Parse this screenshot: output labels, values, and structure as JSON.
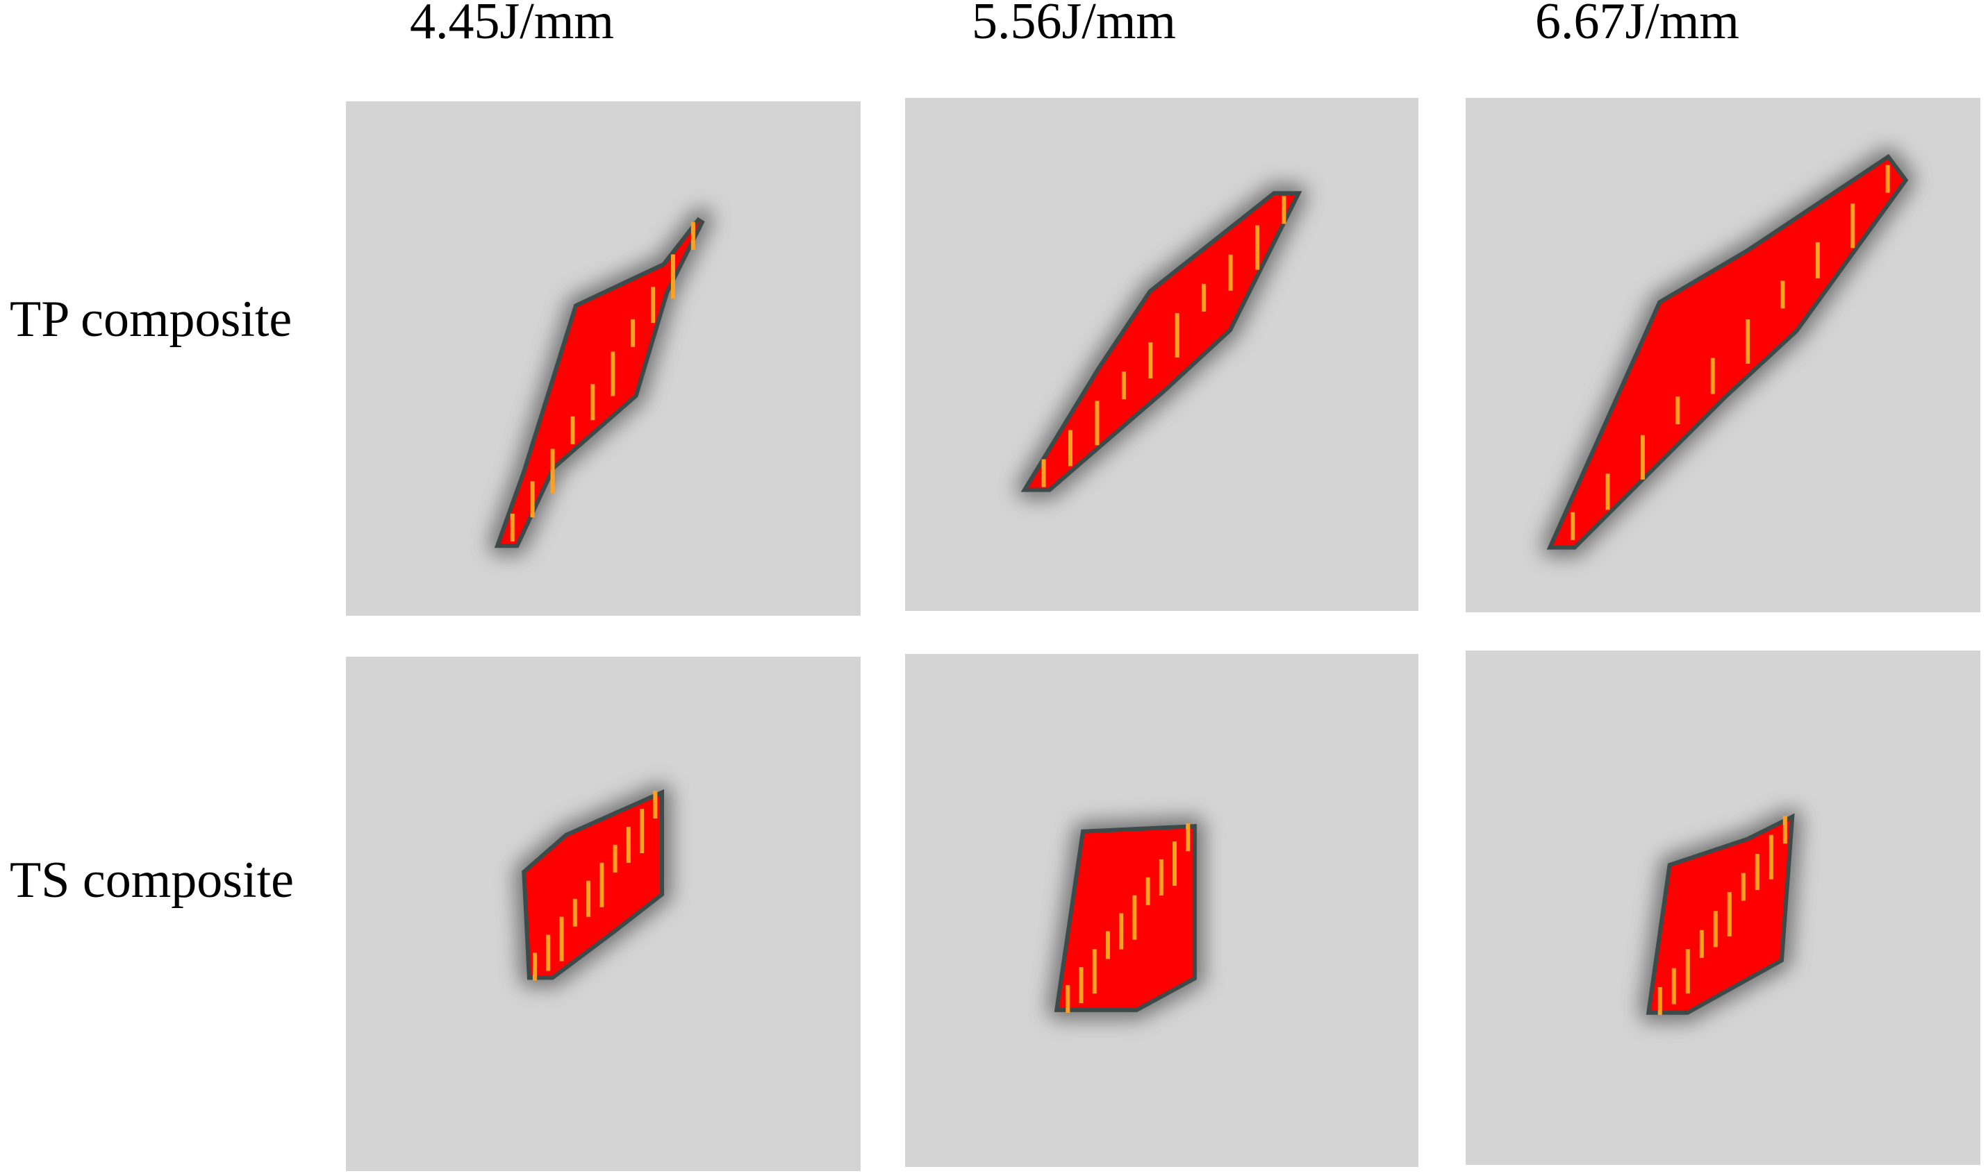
{
  "column_headers": [
    "4.45J/mm",
    "5.56J/mm",
    "6.67J/mm"
  ],
  "row_labels": [
    "TP composite",
    "TS composite"
  ]
}
